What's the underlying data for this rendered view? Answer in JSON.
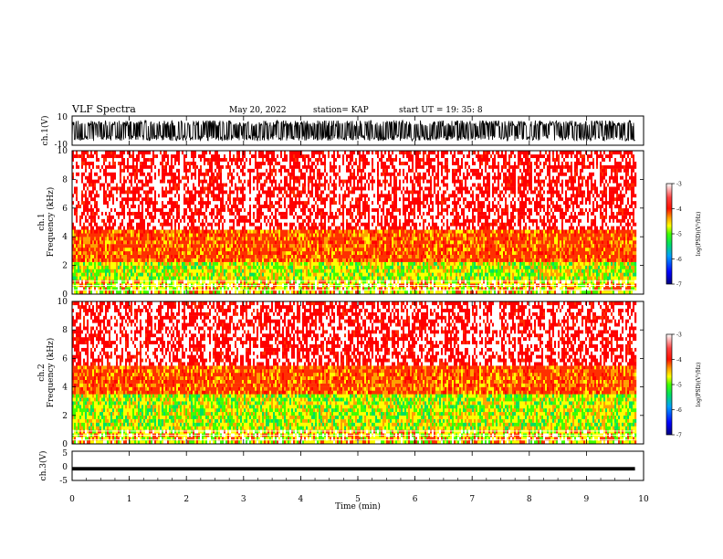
{
  "header": {
    "title": "VLF Spectra",
    "date": "May 20, 2022",
    "station": "station= KAP",
    "start": "start  UT =   19: 35: 8"
  },
  "colors": {
    "spectrum": [
      "#000080",
      "#0000ff",
      "#00a0ff",
      "#00e060",
      "#40ff00",
      "#ffff00",
      "#ffa000",
      "#ff3000",
      "#ff0000",
      "#ffffff"
    ],
    "trace": "#000000",
    "frame": "#000000"
  },
  "chart_data": [
    {
      "type": "line",
      "name": "ch1-waveform",
      "ylabel": "ch.1(V)",
      "ylim": [
        -10,
        10
      ],
      "y_ticks": [
        "10",
        "-10"
      ],
      "xlim": [
        0,
        10
      ],
      "note_series": "dense noise waveform spanning roughly -7 to +7 V over 0 to 9.85 min"
    },
    {
      "type": "heatmap",
      "name": "ch1-spectrogram",
      "ylabel_top": "ch.1",
      "ylabel": "Frequency (kHz)",
      "ylim": [
        0,
        10
      ],
      "y_ticks": [
        "0",
        "2",
        "4",
        "6",
        "8",
        "10"
      ],
      "xlim": [
        0,
        10
      ],
      "data_extent_x": [
        0,
        9.85
      ],
      "colorbar": {
        "label": "log(PSD)(V²/Hz)",
        "range": [
          -7,
          -3
        ],
        "ticks": [
          "-3",
          "-4",
          "-5",
          "-6",
          "-7"
        ]
      },
      "bands": [
        {
          "from": 0,
          "to": 1.0,
          "level": "mixed"
        },
        {
          "from": 1.0,
          "to": 2.2,
          "level": "yellow-green"
        },
        {
          "from": 2.2,
          "to": 4.8,
          "level": "orange-red"
        },
        {
          "from": 4.8,
          "to": 10,
          "level": "red-white"
        }
      ]
    },
    {
      "type": "heatmap",
      "name": "ch2-spectrogram",
      "ylabel_top": "ch.2",
      "ylabel": "Frequency (kHz)",
      "ylim": [
        0,
        10
      ],
      "y_ticks": [
        "0",
        "2",
        "4",
        "6",
        "8",
        "10"
      ],
      "xlim": [
        0,
        10
      ],
      "data_extent_x": [
        0,
        9.85
      ],
      "colorbar": {
        "label": "log(PSD)(V²/Hz)",
        "range": [
          -7,
          -3
        ],
        "ticks": [
          "-3",
          "-4",
          "-5",
          "-6",
          "-7"
        ]
      },
      "bands": [
        {
          "from": 0,
          "to": 1.0,
          "level": "mixed"
        },
        {
          "from": 1.0,
          "to": 3.3,
          "level": "yellow-green"
        },
        {
          "from": 3.3,
          "to": 5.0,
          "level": "orange-red"
        },
        {
          "from": 5.0,
          "to": 10,
          "level": "red-white"
        }
      ]
    },
    {
      "type": "line",
      "name": "ch3-waveform",
      "ylabel": "ch.3(V)",
      "ylim": [
        -5,
        5
      ],
      "y_ticks": [
        "5",
        "0",
        "-5"
      ],
      "xlim": [
        0,
        10
      ],
      "x_ticks": [
        "0",
        "1",
        "2",
        "3",
        "4",
        "5",
        "6",
        "7",
        "8",
        "9",
        "10"
      ],
      "xlabel": "Time (min)",
      "band": [
        -1.6,
        -0.4
      ]
    }
  ]
}
